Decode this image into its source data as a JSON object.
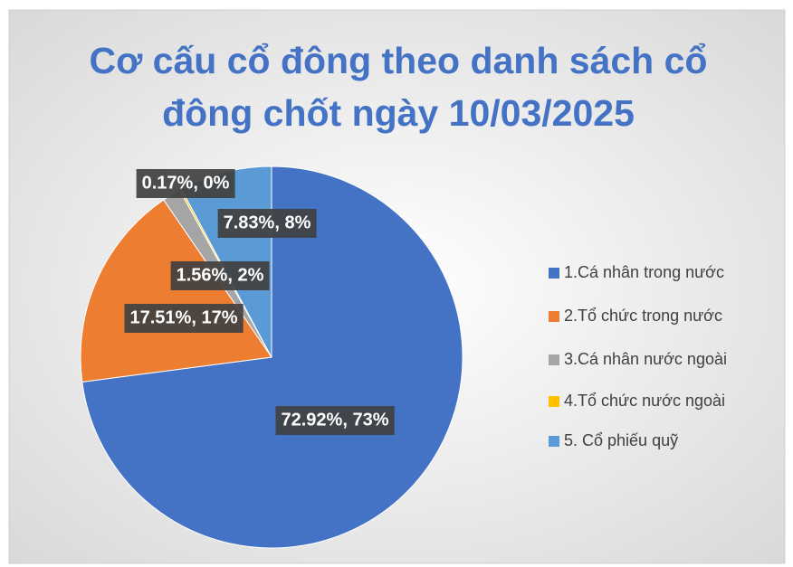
{
  "chart_data": {
    "type": "pie",
    "title": "Cơ cấu cổ đông theo danh sách cổ đông chốt ngày 10/03/2025",
    "categories": [
      "1.Cá nhân trong nước",
      "2.Tổ chức trong nước",
      "3.Cá nhân nước ngoài",
      "4.Tổ chức nước ngoài",
      "5. Cổ phiếu quỹ"
    ],
    "values": [
      72.92,
      17.51,
      1.56,
      0.17,
      7.83
    ],
    "value_labels": [
      "72.92%, 73%",
      "17.51%, 17%",
      "1.56%, 2%",
      "0.17%, 0%",
      "7.83%, 8%"
    ],
    "colors": [
      "#4472c4",
      "#ed7d31",
      "#a5a5a5",
      "#ffc000",
      "#5b9bd5"
    ],
    "legend": "right"
  }
}
